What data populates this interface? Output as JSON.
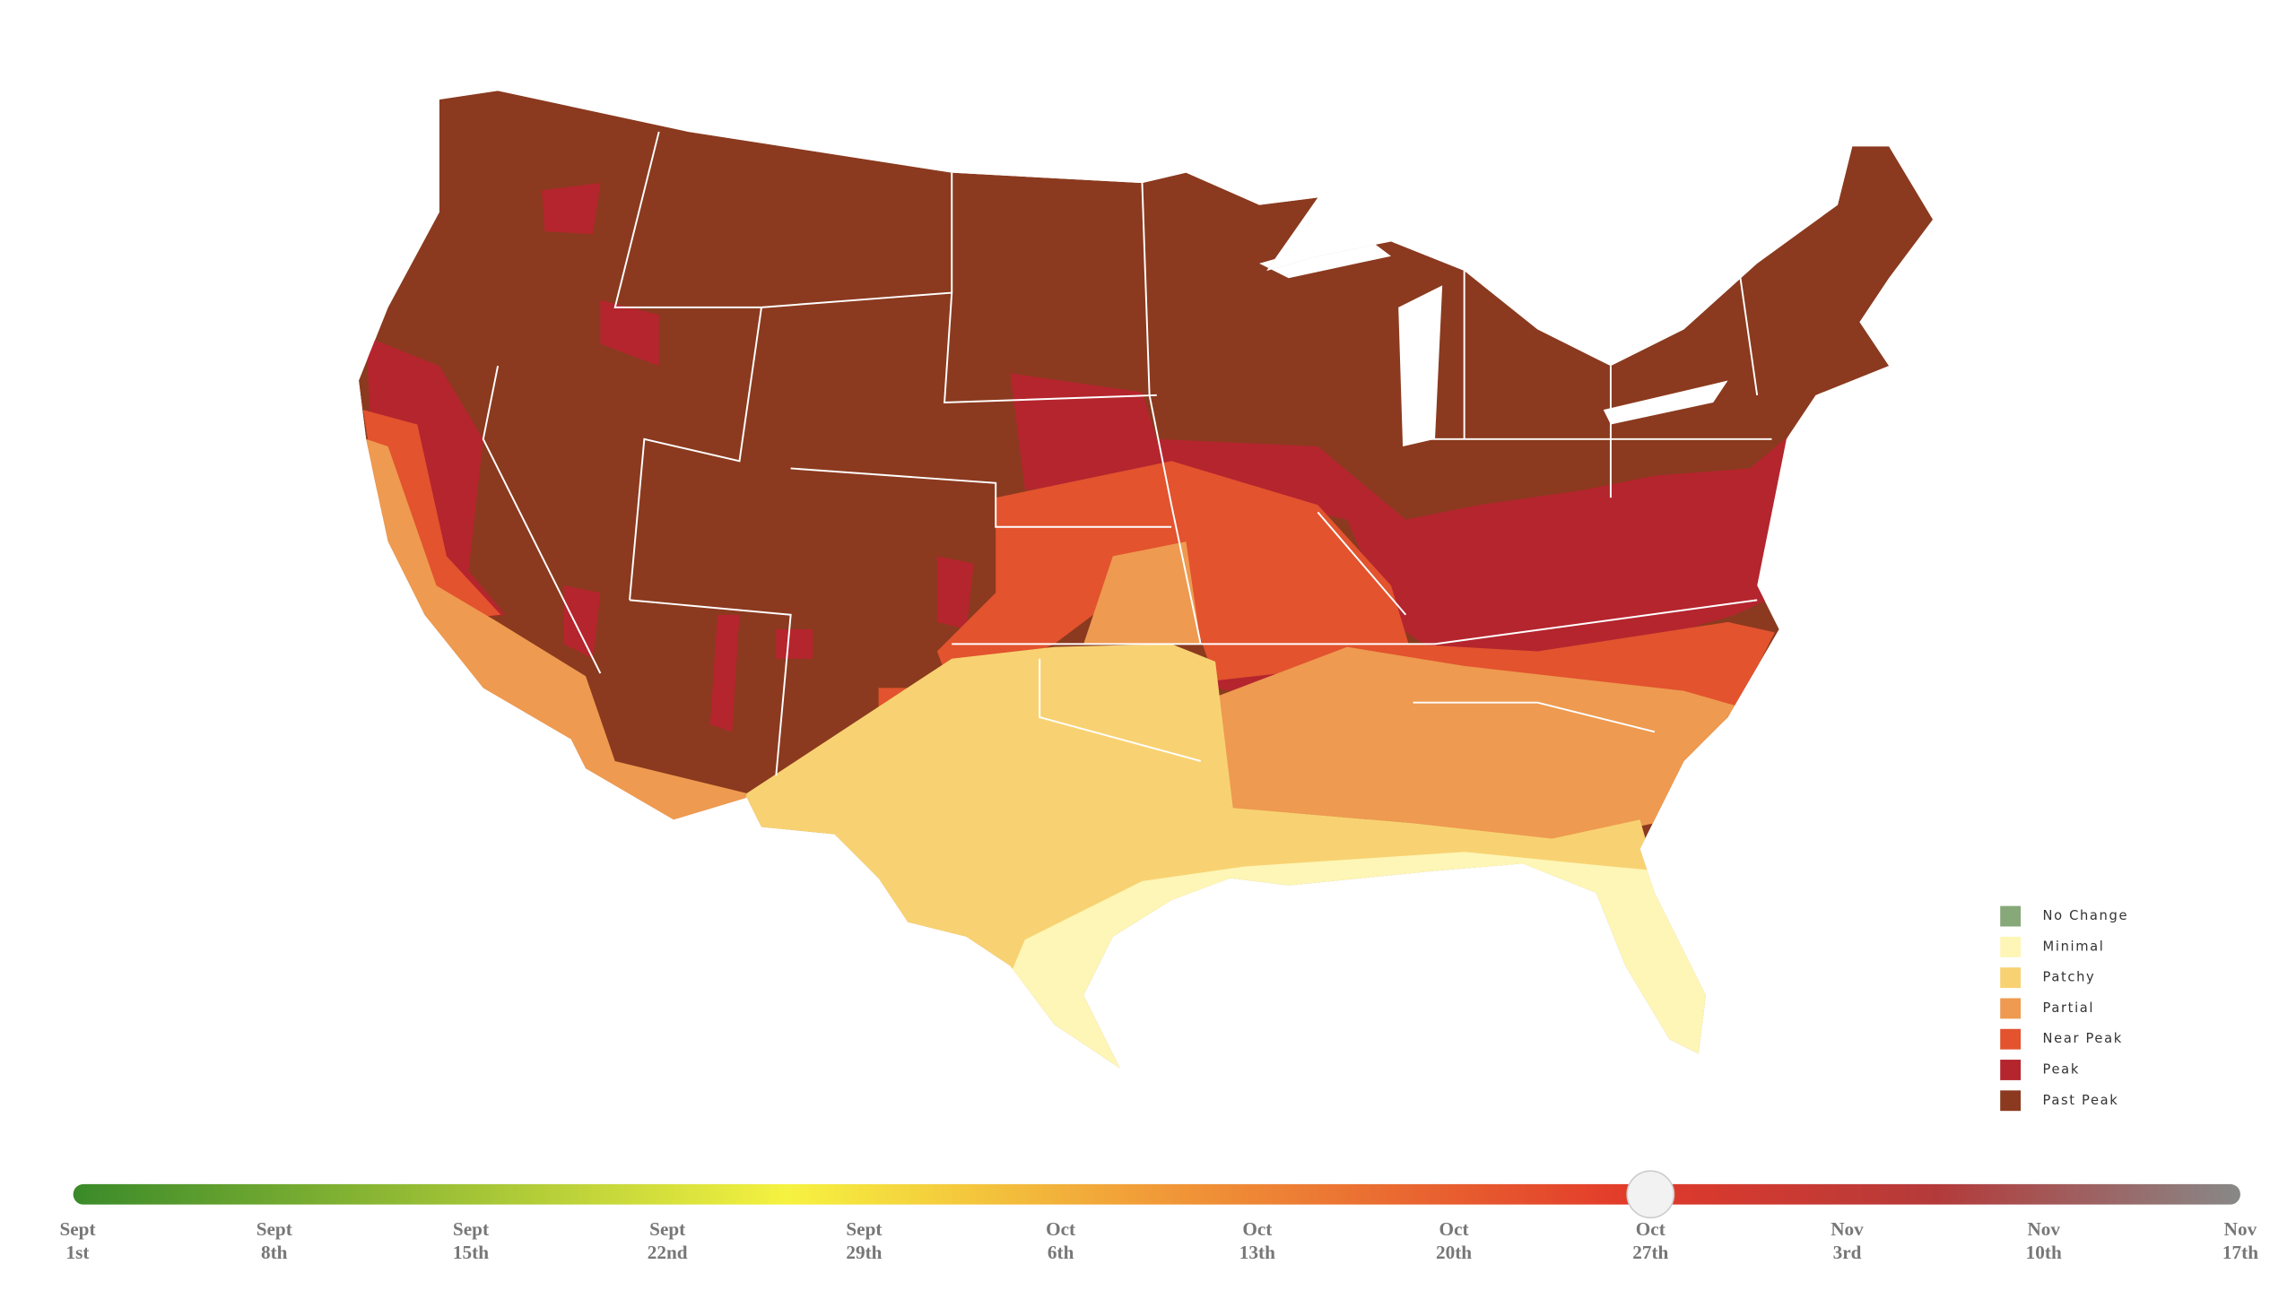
{
  "legend": [
    {
      "name": "No Change",
      "color": "#87a878"
    },
    {
      "name": "Minimal",
      "color": "#fdf6b6"
    },
    {
      "name": "Patchy",
      "color": "#f8d272"
    },
    {
      "name": "Partial",
      "color": "#ee9a50"
    },
    {
      "name": "Near Peak",
      "color": "#e2532e"
    },
    {
      "name": "Peak",
      "color": "#b5252e"
    },
    {
      "name": "Past Peak",
      "color": "#8b3a1f"
    }
  ],
  "slider": {
    "labels": [
      {
        "month": "Sept",
        "day": "1st"
      },
      {
        "month": "Sept",
        "day": "8th"
      },
      {
        "month": "Sept",
        "day": "15th"
      },
      {
        "month": "Sept",
        "day": "22nd"
      },
      {
        "month": "Sept",
        "day": "29th"
      },
      {
        "month": "Oct",
        "day": "6th"
      },
      {
        "month": "Oct",
        "day": "13th"
      },
      {
        "month": "Oct",
        "day": "20th"
      },
      {
        "month": "Oct",
        "day": "27th"
      },
      {
        "month": "Nov",
        "day": "3rd"
      },
      {
        "month": "Nov",
        "day": "10th"
      },
      {
        "month": "Nov",
        "day": "17th"
      }
    ],
    "selected_index": 8
  }
}
